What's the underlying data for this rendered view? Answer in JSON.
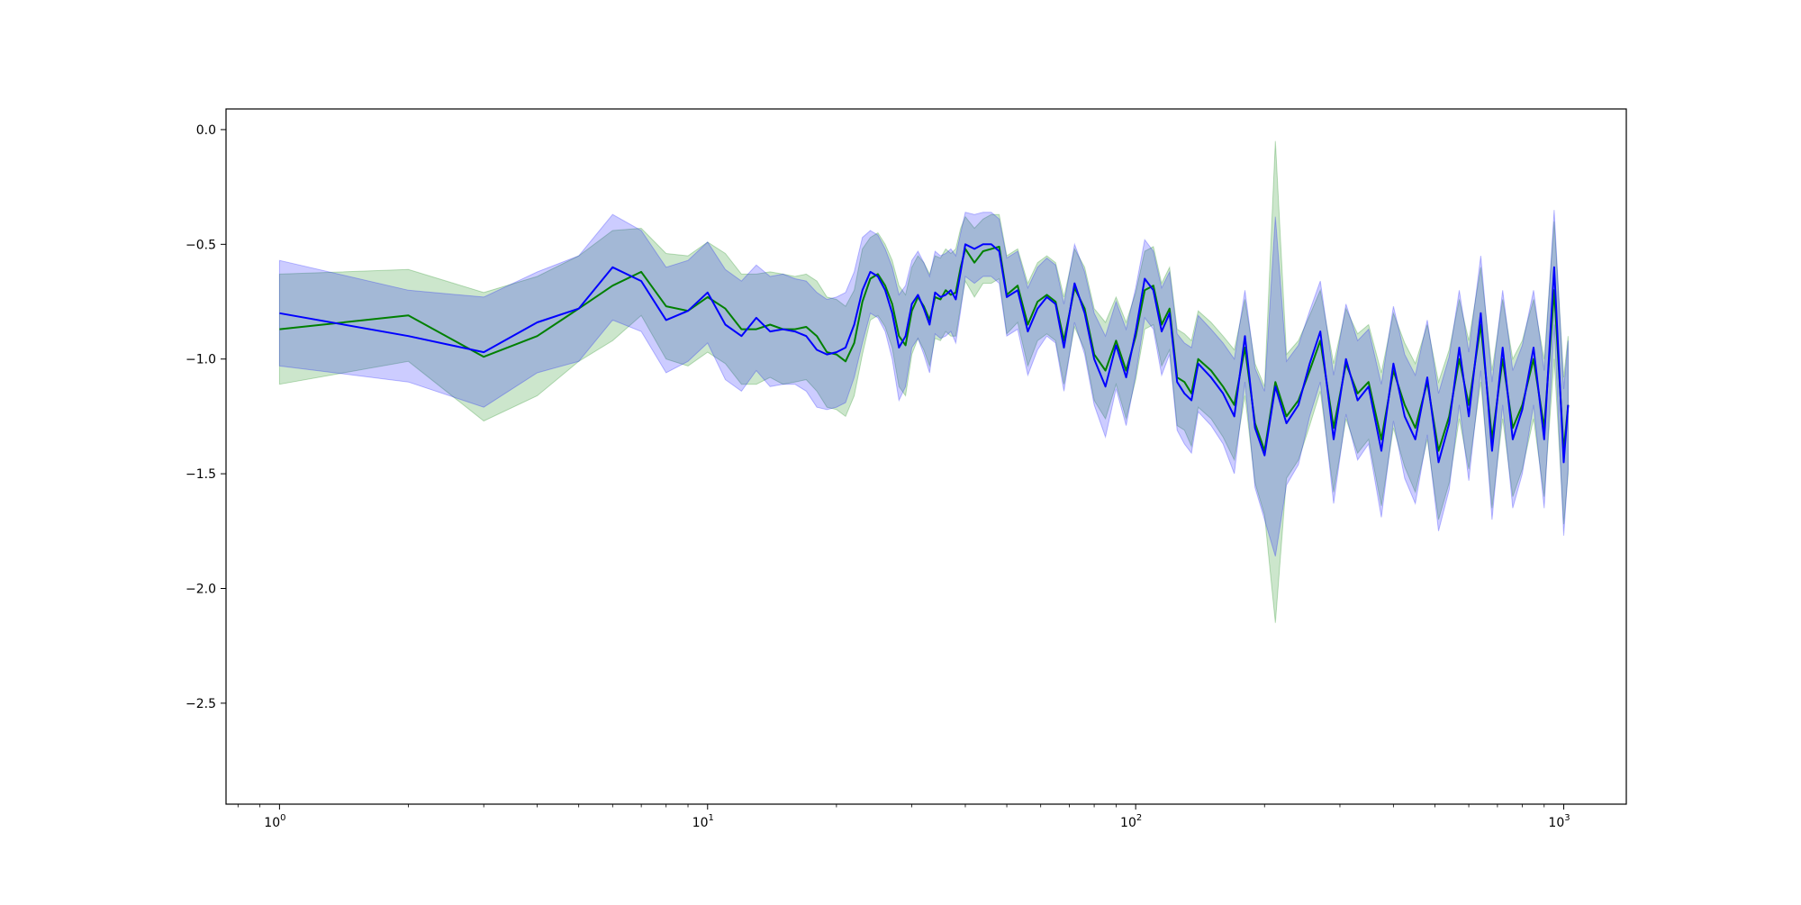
{
  "chart_data": {
    "type": "line",
    "title": "",
    "xlabel": "",
    "ylabel": "",
    "xscale": "log",
    "xlim": [
      0.75,
      1400
    ],
    "ylim": [
      -2.94,
      0.09
    ],
    "grid": false,
    "legend": "none",
    "x_ticks": [
      {
        "value": 1,
        "base": "10",
        "exp": "0"
      },
      {
        "value": 10,
        "base": "10",
        "exp": "1"
      },
      {
        "value": 100,
        "base": "10",
        "exp": "2"
      },
      {
        "value": 1000,
        "base": "10",
        "exp": "3"
      }
    ],
    "y_ticks": [
      {
        "value": 0.0,
        "label": "0.0"
      },
      {
        "value": -0.5,
        "label": "−0.5"
      },
      {
        "value": -1.0,
        "label": "−1.0"
      },
      {
        "value": -1.5,
        "label": "−1.5"
      },
      {
        "value": -2.0,
        "label": "−2.0"
      },
      {
        "value": -2.5,
        "label": "−2.5"
      }
    ],
    "series": [
      {
        "color": "#008000",
        "band_color": "#008000",
        "band_opacity": 0.2,
        "x": [
          1,
          2,
          3,
          4,
          5,
          6,
          7,
          8,
          9,
          10,
          11,
          12,
          13,
          14,
          15,
          16,
          17,
          18,
          19,
          20,
          21,
          22,
          23,
          24,
          25,
          26,
          27,
          28,
          29,
          30,
          31,
          32,
          33,
          34,
          35,
          36,
          37,
          38,
          39,
          40,
          42,
          44,
          46,
          48,
          50,
          53,
          56,
          59,
          62,
          65,
          68,
          72,
          76,
          80,
          85,
          90,
          95,
          100,
          105,
          110,
          115,
          120,
          125,
          130,
          135,
          140,
          150,
          160,
          170,
          180,
          190,
          200,
          212,
          225,
          240,
          255,
          270,
          290,
          310,
          330,
          350,
          375,
          400,
          425,
          450,
          480,
          510,
          540,
          570,
          600,
          640,
          680,
          720,
          760,
          800,
          850,
          900,
          950,
          1000,
          1024
        ],
        "mean": [
          -0.87,
          -0.81,
          -0.99,
          -0.9,
          -0.78,
          -0.68,
          -0.62,
          -0.77,
          -0.79,
          -0.73,
          -0.78,
          -0.87,
          -0.87,
          -0.85,
          -0.87,
          -0.87,
          -0.86,
          -0.9,
          -0.97,
          -0.98,
          -1.01,
          -0.93,
          -0.75,
          -0.65,
          -0.63,
          -0.68,
          -0.76,
          -0.9,
          -0.94,
          -0.79,
          -0.73,
          -0.77,
          -0.83,
          -0.73,
          -0.74,
          -0.7,
          -0.72,
          -0.71,
          -0.6,
          -0.52,
          -0.58,
          -0.53,
          -0.52,
          -0.51,
          -0.72,
          -0.68,
          -0.85,
          -0.75,
          -0.72,
          -0.75,
          -0.92,
          -0.69,
          -0.78,
          -0.98,
          -1.05,
          -0.92,
          -1.05,
          -0.9,
          -0.7,
          -0.68,
          -0.85,
          -0.78,
          -1.08,
          -1.1,
          -1.15,
          -1.0,
          -1.05,
          -1.12,
          -1.2,
          -0.95,
          -1.28,
          -1.4,
          -1.1,
          -1.25,
          -1.18,
          -1.05,
          -0.92,
          -1.3,
          -1.02,
          -1.15,
          -1.1,
          -1.35,
          -1.05,
          -1.2,
          -1.3,
          -1.1,
          -1.4,
          -1.25,
          -1.0,
          -1.2,
          -0.85,
          -1.35,
          -1.0,
          -1.3,
          -1.2,
          -1.0,
          -1.3,
          -0.7,
          -1.4,
          -1.2
        ],
        "upper": [
          -0.63,
          -0.61,
          -0.71,
          -0.64,
          -0.55,
          -0.44,
          -0.43,
          -0.54,
          -0.55,
          -0.49,
          -0.54,
          -0.63,
          -0.63,
          -0.62,
          -0.63,
          -0.64,
          -0.63,
          -0.66,
          -0.73,
          -0.74,
          -0.77,
          -0.7,
          -0.52,
          -0.47,
          -0.45,
          -0.5,
          -0.57,
          -0.68,
          -0.72,
          -0.6,
          -0.55,
          -0.58,
          -0.63,
          -0.55,
          -0.56,
          -0.52,
          -0.54,
          -0.52,
          -0.43,
          -0.38,
          -0.43,
          -0.39,
          -0.37,
          -0.37,
          -0.55,
          -0.52,
          -0.67,
          -0.58,
          -0.55,
          -0.58,
          -0.73,
          -0.52,
          -0.6,
          -0.78,
          -0.84,
          -0.73,
          -0.84,
          -0.71,
          -0.53,
          -0.51,
          -0.67,
          -0.6,
          -0.87,
          -0.89,
          -0.92,
          -0.79,
          -0.84,
          -0.9,
          -0.96,
          -0.74,
          -1.02,
          -1.12,
          -0.05,
          -0.98,
          -0.92,
          -0.81,
          -0.7,
          -1.02,
          -0.78,
          -0.89,
          -0.85,
          -1.06,
          -0.8,
          -0.93,
          -1.02,
          -0.85,
          -1.1,
          -0.96,
          -0.74,
          -0.92,
          -0.6,
          -1.05,
          -0.74,
          -1.0,
          -0.92,
          -0.74,
          -1.0,
          -0.4,
          -1.08,
          -0.9
        ]
      },
      {
        "color": "#0000ff",
        "band_color": "#0000ff",
        "band_opacity": 0.2,
        "x": [
          1,
          2,
          3,
          4,
          5,
          6,
          7,
          8,
          9,
          10,
          11,
          12,
          13,
          14,
          15,
          16,
          17,
          18,
          19,
          20,
          21,
          22,
          23,
          24,
          25,
          26,
          27,
          28,
          29,
          30,
          31,
          32,
          33,
          34,
          35,
          36,
          37,
          38,
          39,
          40,
          42,
          44,
          46,
          48,
          50,
          53,
          56,
          59,
          62,
          65,
          68,
          72,
          76,
          80,
          85,
          90,
          95,
          100,
          105,
          110,
          115,
          120,
          125,
          130,
          135,
          140,
          150,
          160,
          170,
          180,
          190,
          200,
          212,
          225,
          240,
          255,
          270,
          290,
          310,
          330,
          350,
          375,
          400,
          425,
          450,
          480,
          510,
          540,
          570,
          600,
          640,
          680,
          720,
          760,
          800,
          850,
          900,
          950,
          1000,
          1024
        ],
        "mean": [
          -0.8,
          -0.9,
          -0.97,
          -0.84,
          -0.78,
          -0.6,
          -0.66,
          -0.83,
          -0.79,
          -0.71,
          -0.85,
          -0.9,
          -0.82,
          -0.88,
          -0.87,
          -0.88,
          -0.9,
          -0.96,
          -0.98,
          -0.97,
          -0.95,
          -0.85,
          -0.7,
          -0.62,
          -0.64,
          -0.7,
          -0.8,
          -0.95,
          -0.9,
          -0.76,
          -0.72,
          -0.78,
          -0.85,
          -0.71,
          -0.73,
          -0.72,
          -0.7,
          -0.74,
          -0.62,
          -0.5,
          -0.52,
          -0.5,
          -0.5,
          -0.53,
          -0.73,
          -0.7,
          -0.88,
          -0.78,
          -0.73,
          -0.76,
          -0.95,
          -0.67,
          -0.8,
          -1.0,
          -1.12,
          -0.94,
          -1.08,
          -0.88,
          -0.65,
          -0.7,
          -0.88,
          -0.8,
          -1.1,
          -1.15,
          -1.18,
          -1.02,
          -1.08,
          -1.15,
          -1.25,
          -0.9,
          -1.3,
          -1.42,
          -1.12,
          -1.28,
          -1.2,
          -1.02,
          -0.88,
          -1.35,
          -1.0,
          -1.18,
          -1.12,
          -1.4,
          -1.02,
          -1.25,
          -1.35,
          -1.08,
          -1.45,
          -1.28,
          -0.95,
          -1.25,
          -0.8,
          -1.4,
          -0.95,
          -1.35,
          -1.22,
          -0.95,
          -1.35,
          -0.6,
          -1.45,
          -1.2
        ],
        "upper": [
          -0.57,
          -0.7,
          -0.73,
          -0.62,
          -0.55,
          -0.37,
          -0.44,
          -0.6,
          -0.57,
          -0.49,
          -0.61,
          -0.66,
          -0.59,
          -0.64,
          -0.63,
          -0.65,
          -0.66,
          -0.71,
          -0.74,
          -0.73,
          -0.71,
          -0.62,
          -0.47,
          -0.44,
          -0.46,
          -0.52,
          -0.6,
          -0.72,
          -0.68,
          -0.57,
          -0.53,
          -0.58,
          -0.64,
          -0.53,
          -0.55,
          -0.54,
          -0.52,
          -0.55,
          -0.45,
          -0.36,
          -0.37,
          -0.36,
          -0.36,
          -0.39,
          -0.56,
          -0.53,
          -0.69,
          -0.6,
          -0.56,
          -0.59,
          -0.76,
          -0.5,
          -0.62,
          -0.8,
          -0.9,
          -0.75,
          -0.87,
          -0.69,
          -0.48,
          -0.53,
          -0.69,
          -0.62,
          -0.89,
          -0.93,
          -0.95,
          -0.81,
          -0.87,
          -0.93,
          -1.0,
          -0.7,
          -1.04,
          -1.14,
          -0.38,
          -1.01,
          -0.94,
          -0.79,
          -0.66,
          -1.07,
          -0.76,
          -0.92,
          -0.87,
          -1.11,
          -0.77,
          -0.98,
          -1.07,
          -0.83,
          -1.15,
          -0.99,
          -0.7,
          -0.97,
          -0.55,
          -1.1,
          -0.7,
          -1.05,
          -0.94,
          -0.7,
          -1.05,
          -0.35,
          -1.13,
          -0.92
        ]
      }
    ]
  }
}
